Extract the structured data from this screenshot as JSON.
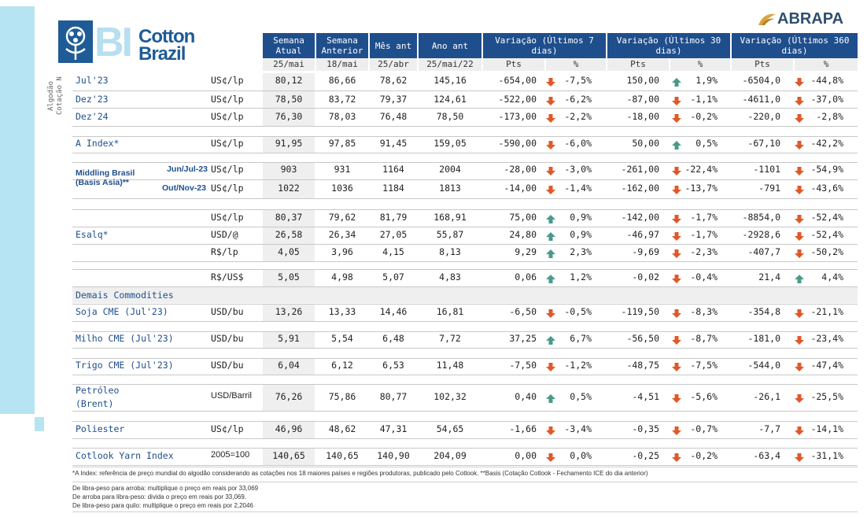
{
  "brand": {
    "bi": "BI",
    "cotton_line1": "Cotton",
    "cotton_line2": "Brazil",
    "abrapa": "ABRAPA"
  },
  "vertical_label": [
    "Algodão",
    "Cotação N"
  ],
  "headers": {
    "semana_atual": "Semana Atual",
    "semana_anterior": "Semana Anterior",
    "mes_ant": "Mês ant",
    "ano_ant": "Ano ant",
    "var7": "Variação (Últimos 7 dias)",
    "var30": "Variação (Últimos 30 dias)",
    "var360": "Variação (Últimos 360 dias)"
  },
  "subheaders": [
    "25/mai",
    "18/mai",
    "25/abr",
    "25/mai/22",
    "Pts",
    "%",
    "Pts",
    "%",
    "Pts",
    "%"
  ],
  "rows": [
    {
      "label": "Jul'23",
      "unit": "US¢/lp",
      "v": [
        "80,12",
        "86,66",
        "78,62",
        "145,16"
      ],
      "p7": "-654,00",
      "c7": "-7,5%",
      "d7": "down",
      "p30": "150,00",
      "c30": "1,9%",
      "d30": "up",
      "p360": "-6504,0",
      "c360": "-44,8%",
      "d360": "down"
    },
    {
      "label": "Dez'23",
      "unit": "US¢/lp",
      "v": [
        "78,50",
        "83,72",
        "79,37",
        "124,61"
      ],
      "p7": "-522,00",
      "c7": "-6,2%",
      "d7": "down",
      "p30": "-87,00",
      "c30": "-1,1%",
      "d30": "down",
      "p360": "-4611,0",
      "c360": "-37,0%",
      "d360": "down"
    },
    {
      "label": "Dez'24",
      "unit": "US¢/lp",
      "v": [
        "76,30",
        "78,03",
        "76,48",
        "78,50"
      ],
      "p7": "-173,00",
      "c7": "-2,2%",
      "d7": "down",
      "p30": "-18,00",
      "c30": "-0,2%",
      "d30": "down",
      "p360": "-220,0",
      "c360": "-2,8%",
      "d360": "down"
    },
    {
      "label": "A Index*",
      "unit": "US¢/lp",
      "v": [
        "91,95",
        "97,85",
        "91,45",
        "159,05"
      ],
      "p7": "-590,00",
      "c7": "-6,0%",
      "d7": "down",
      "p30": "50,00",
      "c30": "0,5%",
      "d30": "up",
      "p360": "-67,10",
      "c360": "-42,2%",
      "d360": "down"
    },
    {
      "label": "Jun/Jul-23",
      "unit": "US¢/lp",
      "v": [
        "903",
        "931",
        "1164",
        "2004"
      ],
      "p7": "-28,00",
      "c7": "-3,0%",
      "d7": "down",
      "p30": "-261,00",
      "c30": "-22,4%",
      "d30": "down",
      "p360": "-1101",
      "c360": "-54,9%",
      "d360": "down"
    },
    {
      "label": "Out/Nov-23",
      "unit": "US¢/lp",
      "v": [
        "1022",
        "1036",
        "1184",
        "1813"
      ],
      "p7": "-14,00",
      "c7": "-1,4%",
      "d7": "down",
      "p30": "-162,00",
      "c30": "-13,7%",
      "d30": "down",
      "p360": "-791",
      "c360": "-43,6%",
      "d360": "down"
    },
    {
      "label": "",
      "unit": "US¢/lp",
      "v": [
        "80,37",
        "79,62",
        "81,79",
        "168,91"
      ],
      "p7": "75,00",
      "c7": "0,9%",
      "d7": "up",
      "p30": "-142,00",
      "c30": "-1,7%",
      "d30": "down",
      "p360": "-8854,0",
      "c360": "-52,4%",
      "d360": "down"
    },
    {
      "label": "Esalq*",
      "unit": "USD/@",
      "v": [
        "26,58",
        "26,34",
        "27,05",
        "55,87"
      ],
      "p7": "24,80",
      "c7": "0,9%",
      "d7": "up",
      "p30": "-46,97",
      "c30": "-1,7%",
      "d30": "down",
      "p360": "-2928,6",
      "c360": "-52,4%",
      "d360": "down"
    },
    {
      "label": "",
      "unit": "R$/lp",
      "v": [
        "4,05",
        "3,96",
        "4,15",
        "8,13"
      ],
      "p7": "9,29",
      "c7": "2,3%",
      "d7": "up",
      "p30": "-9,69",
      "c30": "-2,3%",
      "d30": "down",
      "p360": "-407,7",
      "c360": "-50,2%",
      "d360": "down"
    },
    {
      "label": "",
      "unit": "R$/US$",
      "v": [
        "5,05",
        "4,98",
        "5,07",
        "4,83"
      ],
      "p7": "0,06",
      "c7": "1,2%",
      "d7": "up",
      "p30": "-0,02",
      "c30": "-0,4%",
      "d30": "down",
      "p360": "21,4",
      "c360": "4,4%",
      "d360": "up"
    },
    {
      "label": "Soja CME (Jul'23)",
      "unit": "USD/bu",
      "v": [
        "13,26",
        "13,33",
        "14,46",
        "16,81"
      ],
      "p7": "-6,50",
      "c7": "-0,5%",
      "d7": "down",
      "p30": "-119,50",
      "c30": "-8,3%",
      "d30": "down",
      "p360": "-354,8",
      "c360": "-21,1%",
      "d360": "down"
    },
    {
      "label": "Milho CME (Jul'23)",
      "unit": "USD/bu",
      "v": [
        "5,91",
        "5,54",
        "6,48",
        "7,72"
      ],
      "p7": "37,25",
      "c7": "6,7%",
      "d7": "up",
      "p30": "-56,50",
      "c30": "-8,7%",
      "d30": "down",
      "p360": "-181,0",
      "c360": "-23,4%",
      "d360": "down"
    },
    {
      "label": "Trigo CME (Jul'23)",
      "unit": "USD/bu",
      "v": [
        "6,04",
        "6,12",
        "6,53",
        "11,48"
      ],
      "p7": "-7,50",
      "c7": "-1,2%",
      "d7": "down",
      "p30": "-48,75",
      "c30": "-7,5%",
      "d30": "down",
      "p360": "-544,0",
      "c360": "-47,4%",
      "d360": "down"
    },
    {
      "label": "Petróleo (Brent)",
      "unit": "USD/Barril",
      "v": [
        "76,26",
        "75,86",
        "80,77",
        "102,32"
      ],
      "p7": "0,40",
      "c7": "0,5%",
      "d7": "up",
      "p30": "-4,51",
      "c30": "-5,6%",
      "d30": "down",
      "p360": "-26,1",
      "c360": "-25,5%",
      "d360": "down"
    },
    {
      "label": "Poliester",
      "unit": "US¢/lp",
      "v": [
        "46,96",
        "48,62",
        "47,31",
        "54,65"
      ],
      "p7": "-1,66",
      "c7": "-3,4%",
      "d7": "down",
      "p30": "-0,35",
      "c30": "-0,7%",
      "d30": "down",
      "p360": "-7,7",
      "c360": "-14,1%",
      "d360": "down"
    },
    {
      "label": "Cotlook Yarn Index",
      "unit": "2005=100",
      "v": [
        "140,65",
        "140,65",
        "140,90",
        "204,09"
      ],
      "p7": "0,00",
      "c7": "0,0%",
      "d7": "down",
      "p30": "-0,25",
      "c30": "-0,2%",
      "d30": "down",
      "p360": "-63,4",
      "c360": "-31,1%",
      "d360": "down"
    }
  ],
  "group_labels": {
    "middling": "Middling Brasil (Basis Asia)**",
    "petroleo_l1": "Petróleo",
    "petroleo_l2": "(Brent)",
    "demais": "Demais Commodities"
  },
  "footnotes": {
    "a_index": "*A Index: referência de preço mundial do algodão considerando as cotações nos 18 maiores países e regiões produtoras, publicado pelo Cotlook. **Basis (Cotação Cotlook - Fechamento ICE do dia anterior)",
    "c1": "De libra-peso para arroba: multiplique o preço em reais por 33,069",
    "c2": "De arroba para libra-peso: divida o preço em reais por 33,069.",
    "c3": "De libra-peso para quilo: multiplique o preço em reais por 2,2046"
  },
  "colors": {
    "header_bg": "#1f4e8c",
    "arrow_up": "#4a9a8a",
    "arrow_down": "#e0582a",
    "accent_light": "#b7e4f2"
  }
}
